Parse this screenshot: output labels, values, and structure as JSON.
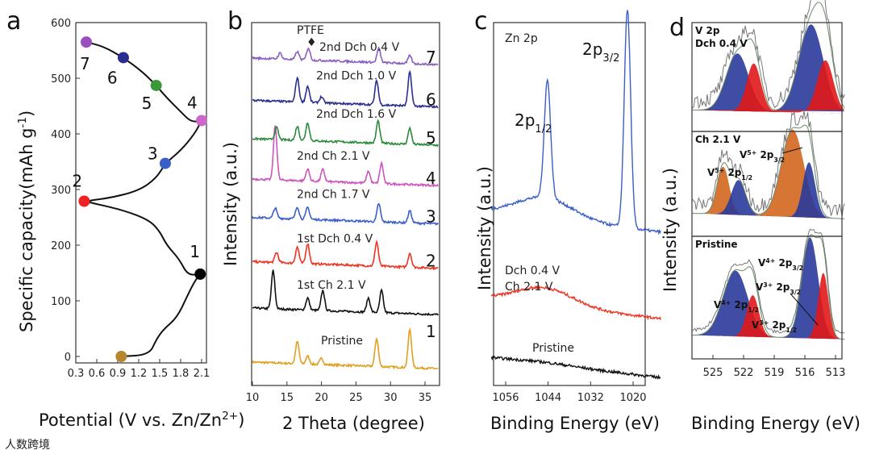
{
  "chart_data": [
    {
      "panel": "a",
      "type": "line",
      "xlabel": "Potential (V vs. Zn/Zn2+)",
      "ylabel": "Specific capacity(mAh g-1)",
      "xlim": [
        0.3,
        2.2
      ],
      "ylim": [
        -20,
        600
      ],
      "xticks": [
        "0.3",
        "0.6",
        "0.9",
        "1.2",
        "1.5",
        "1.8",
        "2.1"
      ],
      "yticks": [
        "0",
        "100",
        "200",
        "300",
        "400",
        "500",
        "600"
      ],
      "curve": [
        [
          0.95,
          0
        ],
        [
          1.35,
          3
        ],
        [
          1.45,
          30
        ],
        [
          1.55,
          48
        ],
        [
          1.75,
          70
        ],
        [
          1.9,
          110
        ],
        [
          2.0,
          135
        ],
        [
          2.08,
          148
        ],
        [
          1.9,
          146
        ],
        [
          1.78,
          175
        ],
        [
          1.6,
          200
        ],
        [
          1.5,
          225
        ],
        [
          1.35,
          245
        ],
        [
          1.0,
          262
        ],
        [
          0.6,
          274
        ],
        [
          0.42,
          279
        ],
        [
          0.8,
          285
        ],
        [
          1.2,
          298
        ],
        [
          1.45,
          320
        ],
        [
          1.58,
          347
        ],
        [
          1.8,
          370
        ],
        [
          2.0,
          400
        ],
        [
          2.1,
          424
        ],
        [
          1.95,
          421
        ],
        [
          1.8,
          440
        ],
        [
          1.6,
          465
        ],
        [
          1.45,
          487
        ],
        [
          1.25,
          512
        ],
        [
          0.98,
          537
        ],
        [
          0.7,
          557
        ],
        [
          0.45,
          565
        ]
      ],
      "points": [
        {
          "label": "",
          "x": 0.95,
          "y": 0,
          "color": "#b8862d"
        },
        {
          "label": "1",
          "x": 2.08,
          "y": 148,
          "color": "#000000"
        },
        {
          "label": "2",
          "x": 0.42,
          "y": 279,
          "color": "#ee2222"
        },
        {
          "label": "3",
          "x": 1.58,
          "y": 347,
          "color": "#3a5fc8"
        },
        {
          "label": "4",
          "x": 2.1,
          "y": 424,
          "color": "#cc66cc"
        },
        {
          "label": "5",
          "x": 1.45,
          "y": 487,
          "color": "#3a9a3a"
        },
        {
          "label": "6",
          "x": 0.98,
          "y": 537,
          "color": "#2a2f8e"
        },
        {
          "label": "7",
          "x": 0.45,
          "y": 565,
          "color": "#9a4fc0"
        }
      ]
    },
    {
      "panel": "b",
      "type": "line",
      "xlabel": "2 Theta (degree)",
      "ylabel": "Intensity (a.u.)",
      "xlim": [
        10,
        37
      ],
      "ylim": [
        0,
        9
      ],
      "xticks": [
        "10",
        "15",
        "20",
        "25",
        "30",
        "35"
      ],
      "annotation": "PTFE",
      "series": [
        {
          "name": "Pristine",
          "num": "",
          "offset": 0.46,
          "color": "#e0a020",
          "peaks": [
            [
              16.5,
              0.55
            ],
            [
              18,
              0.2
            ],
            [
              20,
              0.15
            ],
            [
              28,
              0.7
            ],
            [
              32.8,
              0.95
            ]
          ]
        },
        {
          "name": "1st Ch 2.1 V",
          "num": "1",
          "offset": 1.8,
          "color": "#111111",
          "peaks": [
            [
              13,
              0.95
            ],
            [
              18,
              0.3
            ],
            [
              20.2,
              0.5
            ],
            [
              26.8,
              0.35
            ],
            [
              28.7,
              0.55
            ]
          ]
        },
        {
          "name": "1st Dch 0.4 V",
          "num": "2",
          "offset": 2.95,
          "color": "#ee3322",
          "peaks": [
            [
              13.5,
              0.25
            ],
            [
              16.5,
              0.4
            ],
            [
              18,
              0.5
            ],
            [
              28,
              0.6
            ],
            [
              32.8,
              0.35
            ]
          ]
        },
        {
          "name": "2nd Ch 1.7 V",
          "num": "3",
          "offset": 4.05,
          "color": "#3a5fc8",
          "peaks": [
            [
              13.3,
              0.25
            ],
            [
              16.5,
              0.3
            ],
            [
              18,
              0.3
            ],
            [
              28.3,
              0.45
            ],
            [
              32.8,
              0.3
            ]
          ]
        },
        {
          "name": "2nd Ch 2.1 V",
          "num": "4",
          "offset": 5.0,
          "color": "#cc55bb",
          "peaks": [
            [
              13.3,
              1.35
            ],
            [
              18,
              0.3
            ],
            [
              20.2,
              0.3
            ],
            [
              26.8,
              0.3
            ],
            [
              28.7,
              0.5
            ]
          ]
        },
        {
          "name": "2nd Dch 1.6 V",
          "num": "5",
          "offset": 6.0,
          "color": "#2a8a3a",
          "peaks": [
            [
              13.5,
              0.3
            ],
            [
              16.5,
              0.35
            ],
            [
              18,
              0.45
            ],
            [
              28.2,
              0.55
            ],
            [
              32.8,
              0.4
            ]
          ]
        },
        {
          "name": "2nd Dch 1.0 V",
          "num": "6",
          "offset": 6.95,
          "color": "#2a2f8e",
          "peaks": [
            [
              16.5,
              0.6
            ],
            [
              18,
              0.4
            ],
            [
              20,
              0.15
            ],
            [
              28,
              0.6
            ],
            [
              32.8,
              0.85
            ]
          ]
        },
        {
          "name": "2nd Dch 0.4 V",
          "num": "7",
          "offset": 8.0,
          "color": "#8a5fc0",
          "peaks": [
            [
              14,
              0.15
            ],
            [
              16.5,
              0.2
            ],
            [
              18.1,
              0.3
            ],
            [
              28.3,
              0.35
            ],
            [
              32.8,
              0.2
            ]
          ]
        }
      ]
    },
    {
      "panel": "c",
      "type": "line",
      "title": "Zn 2p",
      "xlabel": "Binding Energy (eV)",
      "ylabel": "Intensity (a.u.)",
      "xlim": [
        1060,
        1012
      ],
      "ylim": [
        0,
        10
      ],
      "xticks": [
        "1056",
        "1044",
        "1032",
        "1020"
      ],
      "peak_labels": [
        {
          "text": "2p",
          "sub": "1/2",
          "x": 1044
        },
        {
          "text": "2p",
          "sub": "3/2",
          "x": 1021.5
        }
      ],
      "series": [
        {
          "name": "Dch 0.4 V",
          "offset": 5.0,
          "color": "#3a5fc8",
          "peaks": [
            [
              1044.2,
              3.4,
              0.9
            ],
            [
              1021.6,
              6.3,
              0.9
            ]
          ],
          "hump": 0.6
        },
        {
          "name": "Ch 2.1 V",
          "offset": 2.5,
          "color": "#ee3322",
          "peaks": [],
          "hump": 0.5
        },
        {
          "name": "Pristine",
          "offset": 0.8,
          "color": "#111111",
          "peaks": [],
          "hump": 0.05
        }
      ]
    },
    {
      "panel": "d",
      "type": "area",
      "xlabel": "Binding Energy (eV)",
      "ylabel": "Intensity (a.u.)",
      "xlim": [
        527,
        512
      ],
      "xticks": [
        "525",
        "522",
        "519",
        "516",
        "513"
      ],
      "subpanels": [
        {
          "title": "V 2p",
          "subtitle": "Dch 0.4 V",
          "components": [
            [
              522.6,
              0.6,
              1.1,
              "#2a3a9a"
            ],
            [
              521.0,
              0.5,
              0.7,
              "#e01818"
            ],
            [
              515.4,
              0.92,
              1.2,
              "#2a3a9a"
            ],
            [
              514.0,
              0.55,
              0.8,
              "#e01818"
            ]
          ],
          "labels": []
        },
        {
          "title": "Ch 2.1 V",
          "subtitle": "",
          "components": [
            [
              524.0,
              0.52,
              0.6,
              "#d2661e"
            ],
            [
              522.5,
              0.38,
              0.7,
              "#2a3a9a"
            ],
            [
              517.2,
              0.95,
              1.1,
              "#d2661e"
            ],
            [
              515.6,
              0.6,
              0.6,
              "#2a3a9a"
            ]
          ],
          "labels": [
            {
              "ion": "V",
              "charge": "5+",
              "orb": "2p",
              "sub": "3/2"
            },
            {
              "ion": "V",
              "charge": "5+",
              "orb": "2p",
              "sub": "1/2"
            }
          ]
        },
        {
          "title": "Pristine",
          "subtitle": "",
          "components": [
            [
              522.8,
              0.6,
              1.2,
              "#2a3a9a"
            ],
            [
              521.1,
              0.38,
              0.6,
              "#e01818"
            ],
            [
              515.5,
              0.92,
              0.8,
              "#2a3a9a"
            ],
            [
              514.2,
              0.6,
              0.5,
              "#e01818"
            ]
          ],
          "labels": [
            {
              "ion": "V",
              "charge": "4+",
              "orb": "2p",
              "sub": "3/2"
            },
            {
              "ion": "V",
              "charge": "3+",
              "orb": "2p",
              "sub": "3/2"
            },
            {
              "ion": "V",
              "charge": "4+",
              "orb": "2p",
              "sub": "1/2"
            },
            {
              "ion": "V",
              "charge": "3+",
              "orb": "2p",
              "sub": "1/2"
            }
          ]
        }
      ]
    }
  ],
  "panel_labels": [
    "a",
    "b",
    "c",
    "d"
  ],
  "axis_labels": {
    "a_x_main": "Potential (V vs. Zn/Zn",
    "a_x_sup": "2+",
    "a_x_end": ")",
    "a_y_main": "Specific capacity(mAh g",
    "a_y_sup": "-1",
    "a_y_end": ")",
    "b_x": "2 Theta (degree)",
    "b_y": "Intensity (a.u.)",
    "c_x": "Binding Energy (eV)",
    "c_y": "Intensity (a.u.)",
    "d_x": "Binding Energy (eV)",
    "d_y": "Intensity (a.u.)"
  },
  "watermark": "人数跨境"
}
